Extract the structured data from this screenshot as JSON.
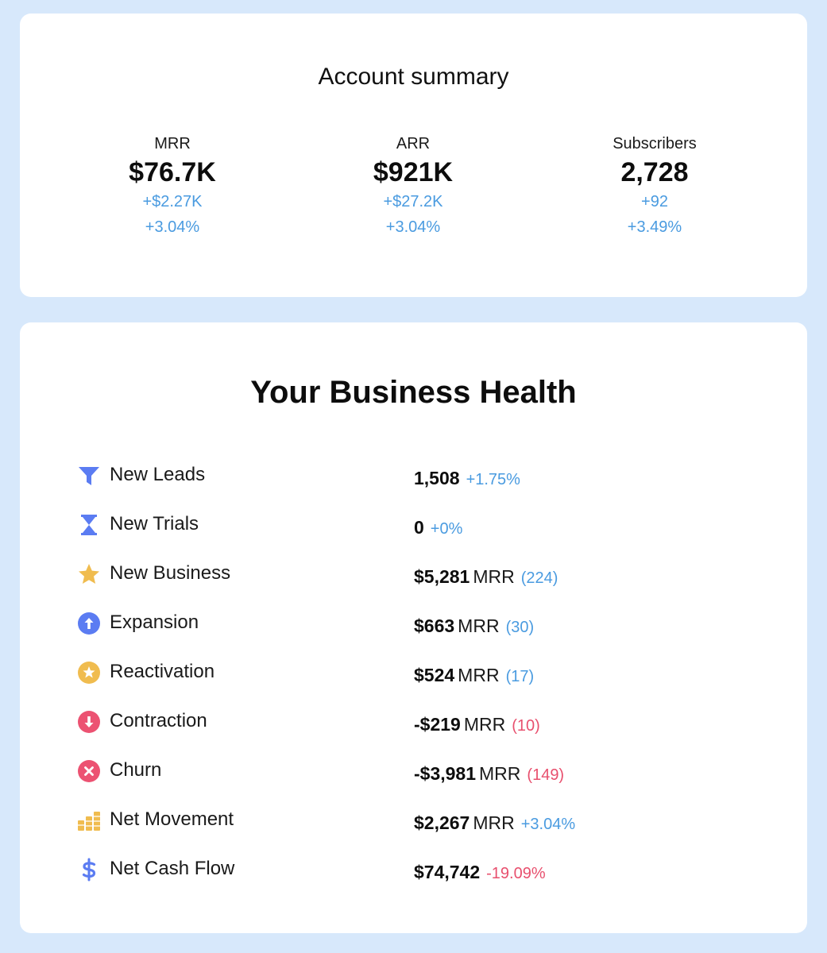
{
  "summary": {
    "title": "Account summary",
    "metrics": [
      {
        "label": "MRR",
        "value": "$76.7K",
        "delta_abs": "+$2.27K",
        "delta_pct": "+3.04%"
      },
      {
        "label": "ARR",
        "value": "$921K",
        "delta_abs": "+$27.2K",
        "delta_pct": "+3.04%"
      },
      {
        "label": "Subscribers",
        "value": "2,728",
        "delta_abs": "+92",
        "delta_pct": "+3.49%"
      }
    ]
  },
  "health": {
    "title": "Your Business Health",
    "rows": [
      {
        "icon": "funnel-icon",
        "label": "New Leads",
        "amount": "1,508",
        "unit": "",
        "change": "+1.75%",
        "tone": "blue"
      },
      {
        "icon": "hourglass-icon",
        "label": "New Trials",
        "amount": "0",
        "unit": "",
        "change": "+0%",
        "tone": "blue"
      },
      {
        "icon": "star-icon",
        "label": "New Business",
        "amount": "$5,281",
        "unit": "MRR",
        "change": "(224)",
        "tone": "blue"
      },
      {
        "icon": "arrow-up-circle-icon",
        "label": "Expansion",
        "amount": "$663",
        "unit": "MRR",
        "change": "(30)",
        "tone": "blue"
      },
      {
        "icon": "star-circle-icon",
        "label": "Reactivation",
        "amount": "$524",
        "unit": "MRR",
        "change": "(17)",
        "tone": "blue"
      },
      {
        "icon": "arrow-down-circle-icon",
        "label": "Contraction",
        "amount": "-$219",
        "unit": "MRR",
        "change": "(10)",
        "tone": "red"
      },
      {
        "icon": "x-circle-icon",
        "label": "Churn",
        "amount": "-$3,981",
        "unit": "MRR",
        "change": "(149)",
        "tone": "red"
      },
      {
        "icon": "coins-stack-icon",
        "label": "Net Movement",
        "amount": "$2,267",
        "unit": "MRR",
        "change": "+3.04%",
        "tone": "blue"
      },
      {
        "icon": "dollar-sign-icon",
        "label": "Net Cash Flow",
        "amount": "$74,742",
        "unit": "",
        "change": "-19.09%",
        "tone": "red"
      }
    ]
  },
  "colors": {
    "background": "#d7e8fb",
    "card": "#ffffff",
    "positive": "#4a9be0",
    "negative": "#e8506e",
    "icon_blue": "#5b7cf2",
    "icon_gold": "#f0bc4f",
    "icon_red": "#ec5272"
  }
}
